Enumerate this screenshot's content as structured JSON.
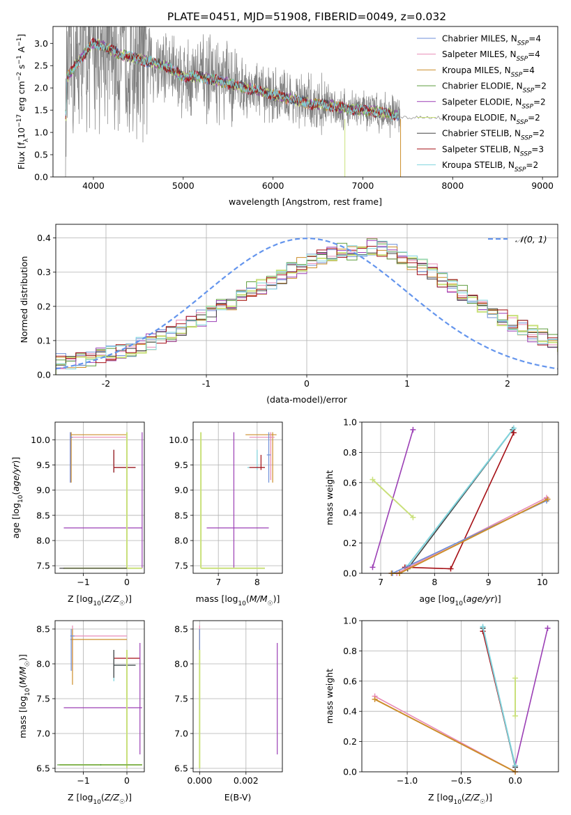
{
  "figure": {
    "title": "PLATE=0451, MJD=51908, FIBERID=0049, z=0.032"
  },
  "colors": {
    "grid": "#b0b0b0",
    "spectrum_data": "#808080",
    "gaussian": "#6495ed"
  },
  "chart_data": [
    {
      "type": "line",
      "name": "spectrum",
      "xlabel": "wavelength [Angstrom, rest frame]",
      "ylabel": "Flux [f_λ10⁻¹⁷ erg cm⁻² s⁻¹ A⁻¹]",
      "xlim": [
        3550,
        9170
      ],
      "ylim": [
        0,
        3.38
      ],
      "xticks": [
        4000,
        5000,
        6000,
        7000,
        8000,
        9000
      ],
      "yticks": [
        0.0,
        0.5,
        1.0,
        1.5,
        2.0,
        2.5,
        3.0
      ],
      "grid": false,
      "legend_position": "top-right",
      "observed_range": [
        3690,
        7420
      ],
      "model_continuum": {
        "x": [
          3700,
          3800,
          3900,
          4000,
          4100,
          4200,
          4300,
          4400,
          4500,
          4600,
          4800,
          5000,
          5200,
          5400,
          5600,
          5800,
          6000,
          6200,
          6400,
          6600,
          6800,
          7000,
          7200,
          7400
        ],
        "y": [
          2.2,
          2.5,
          2.75,
          3.0,
          2.95,
          2.85,
          2.75,
          2.7,
          2.65,
          2.6,
          2.5,
          2.25,
          2.25,
          2.15,
          2.05,
          1.95,
          1.85,
          1.75,
          1.65,
          1.62,
          1.55,
          1.5,
          1.45,
          1.38
        ]
      },
      "series": [
        {
          "name": "Chabrier MILES",
          "nssp": "4",
          "color": "#6d8fd8"
        },
        {
          "name": "Salpeter MILES",
          "nssp": "4",
          "color": "#e88ab6"
        },
        {
          "name": "Kroupa MILES",
          "nssp": "4",
          "color": "#cc8d2a"
        },
        {
          "name": "Chabrier ELODIE",
          "nssp": "2",
          "color": "#5e9c3c"
        },
        {
          "name": "Salpeter ELODIE",
          "nssp": "2",
          "color": "#9b3fb5"
        },
        {
          "name": "Kroupa ELODIE",
          "nssp": "2",
          "color": "#c9e07a"
        },
        {
          "name": "Chabrier STELIB",
          "nssp": "2",
          "color": "#444444"
        },
        {
          "name": "Salpeter STELIB",
          "nssp": "3",
          "color": "#a50f15"
        },
        {
          "name": "Kroupa STELIB",
          "nssp": "2",
          "color": "#7fd4dd"
        }
      ]
    },
    {
      "type": "bar",
      "name": "residual histogram",
      "xlabel": "(data-model)/error",
      "ylabel": "Normed distribution",
      "xlim": [
        -2.5,
        2.5
      ],
      "ylim": [
        0,
        0.44
      ],
      "xticks": [
        -2,
        -1,
        0,
        1,
        2
      ],
      "yticks": [
        0.0,
        0.1,
        0.2,
        0.3,
        0.4
      ],
      "grid": true,
      "legend_label": "𝒩(0, 1)",
      "bin_width": 0.1,
      "hist_base": [
        0.04,
        0.04,
        0.045,
        0.05,
        0.055,
        0.06,
        0.065,
        0.075,
        0.085,
        0.095,
        0.11,
        0.12,
        0.135,
        0.15,
        0.165,
        0.18,
        0.2,
        0.215,
        0.235,
        0.25,
        0.26,
        0.275,
        0.29,
        0.305,
        0.32,
        0.33,
        0.34,
        0.35,
        0.36,
        0.36,
        0.365,
        0.375,
        0.37,
        0.36,
        0.35,
        0.33,
        0.315,
        0.3,
        0.28,
        0.26,
        0.24,
        0.22,
        0.2,
        0.185,
        0.165,
        0.15,
        0.135,
        0.12,
        0.11,
        0.095,
        0.08,
        0.07,
        0.06,
        0.055,
        0.05
      ]
    },
    {
      "type": "scatter",
      "name": "age vs Z",
      "xlabel": "Z [log₁₀(Z/Z☉)]",
      "ylabel": "age  [log₁₀(age/yr)]",
      "xlim": [
        -1.65,
        0.4
      ],
      "ylim": [
        7.35,
        10.35
      ],
      "xticks": [
        -1,
        0
      ],
      "yticks": [
        7.5,
        8.0,
        8.5,
        9.0,
        9.5,
        10.0,
        10.5
      ]
    },
    {
      "type": "scatter",
      "name": "age vs mass",
      "xlabel": "mass [log₁₀(M/M☉)]",
      "ylabel": "",
      "xlim": [
        6.35,
        8.65
      ],
      "ylim": [
        7.35,
        10.35
      ],
      "xticks": [
        7,
        8
      ],
      "yticks": [
        7.5,
        8.0,
        8.5,
        9.0,
        9.5,
        10.0
      ]
    },
    {
      "type": "line",
      "name": "mass weight vs age",
      "xlabel": "age  [log₁₀(age/yr)]",
      "ylabel": "mass weight",
      "xlim": [
        6.65,
        10.3
      ],
      "ylim": [
        0,
        1.0
      ],
      "xticks": [
        7,
        8,
        9,
        10
      ],
      "yticks": [
        0.0,
        0.2,
        0.4,
        0.6,
        0.8,
        1.0
      ],
      "series": [
        {
          "name": "Salpeter ELODIE",
          "color": "#9b3fb5",
          "x": [
            6.85,
            7.6
          ],
          "y": [
            0.04,
            0.95
          ]
        },
        {
          "name": "Kroupa ELODIE",
          "color": "#c9e07a",
          "x": [
            6.85,
            7.6
          ],
          "y": [
            0.62,
            0.37
          ]
        },
        {
          "name": "Chabrier STELIB",
          "color": "#444444",
          "x": [
            7.5,
            9.45
          ],
          "y": [
            0.03,
            0.95
          ]
        },
        {
          "name": "Kroupa STELIB",
          "color": "#7fd4dd",
          "x": [
            7.48,
            9.47
          ],
          "y": [
            0.04,
            0.96
          ]
        },
        {
          "name": "Salpeter STELIB",
          "color": "#a50f15",
          "x": [
            7.45,
            8.3,
            9.47
          ],
          "y": [
            0.04,
            0.03,
            0.93
          ]
        },
        {
          "name": "Salpeter MILES",
          "color": "#e88ab6",
          "x": [
            7.2,
            7.3,
            10.08
          ],
          "y": [
            0.0,
            0.0,
            0.5
          ]
        },
        {
          "name": "Chabrier MILES",
          "color": "#6d8fd8",
          "x": [
            7.22,
            10.08
          ],
          "y": [
            0.0,
            0.48
          ]
        },
        {
          "name": "Kroupa MILES",
          "color": "#cc8d2a",
          "x": [
            7.2,
            7.35,
            10.1
          ],
          "y": [
            0.0,
            0.0,
            0.49
          ]
        }
      ]
    },
    {
      "type": "scatter",
      "name": "mass vs Z",
      "xlabel": "Z [log₁₀(Z/Z☉)]",
      "ylabel": "mass [log₁₀(M/M☉)]",
      "xlim": [
        -1.65,
        0.4
      ],
      "ylim": [
        6.45,
        8.62
      ],
      "xticks": [
        -1,
        0
      ],
      "yticks": [
        6.5,
        7.0,
        7.5,
        8.0,
        8.5
      ]
    },
    {
      "type": "scatter",
      "name": "mass vs E(B-V)",
      "xlabel": "E(B-V)",
      "ylabel": "",
      "xlim": [
        -0.00028,
        0.00357
      ],
      "ylim": [
        6.45,
        8.62
      ],
      "xticks": [
        0.0,
        0.002
      ],
      "xtick_labels": [
        "0.000",
        "0.002"
      ],
      "yticks": [
        6.5,
        7.0,
        7.5,
        8.0,
        8.5
      ]
    },
    {
      "type": "line",
      "name": "mass weight vs Z",
      "xlabel": "Z [log₁₀(Z/Z☉)]",
      "ylabel": "mass weight",
      "xlim": [
        -1.42,
        0.4
      ],
      "ylim": [
        0,
        1.0
      ],
      "xticks": [
        -1.0,
        -0.5,
        0.0
      ],
      "xtick_labels": [
        "−1.0",
        "−0.5",
        "0.0"
      ],
      "yticks": [
        0.0,
        0.2,
        0.4,
        0.6,
        0.8,
        1.0
      ],
      "series": [
        {
          "name": "Salpeter MILES",
          "color": "#e88ab6",
          "x": [
            -1.3,
            0.0
          ],
          "y": [
            0.5,
            0.0
          ]
        },
        {
          "name": "Kroupa MILES",
          "color": "#cc8d2a",
          "x": [
            -1.3,
            0.0
          ],
          "y": [
            0.48,
            0.0
          ]
        },
        {
          "name": "Kroupa ELODIE",
          "color": "#c9e07a",
          "x": [
            0.0,
            0.0
          ],
          "y": [
            0.62,
            0.37
          ]
        },
        {
          "name": "Salpeter ELODIE",
          "color": "#9b3fb5",
          "x": [
            0.0,
            0.3
          ],
          "y": [
            0.04,
            0.95
          ]
        },
        {
          "name": "Chabrier STELIB",
          "color": "#444444",
          "x": [
            -0.3,
            0.0
          ],
          "y": [
            0.95,
            0.03
          ]
        },
        {
          "name": "Salpeter STELIB",
          "color": "#a50f15",
          "x": [
            -0.3,
            0.0
          ],
          "y": [
            0.93,
            0.04
          ]
        },
        {
          "name": "Kroupa STELIB",
          "color": "#7fd4dd",
          "x": [
            -0.3,
            0.0
          ],
          "y": [
            0.96,
            0.04
          ]
        }
      ]
    }
  ]
}
